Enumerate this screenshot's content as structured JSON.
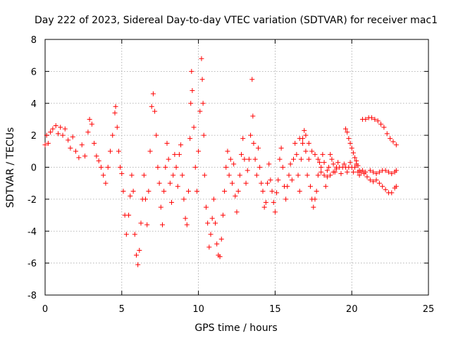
{
  "chart_data": {
    "type": "scatter",
    "title": "Day 222 of 2023, Sidereal Day-to-day VTEC variation (SDTVAR) for receiver mac1",
    "xlabel": "GPS time / hours",
    "ylabel": "SDTVAR / TECUs",
    "xlim": [
      0,
      25
    ],
    "ylim": [
      -8,
      8
    ],
    "xticks": [
      0,
      5,
      10,
      15,
      20,
      25
    ],
    "yticks": [
      -8,
      -6,
      -4,
      -2,
      0,
      2,
      4,
      6,
      8
    ],
    "xtick_labels": [
      "0",
      "5",
      "10",
      "15",
      "20",
      "25"
    ],
    "ytick_labels": [
      "-8",
      "-6",
      "-4",
      "-2",
      "0",
      "2",
      "4",
      "6",
      "8"
    ],
    "grid": true,
    "marker": "plus",
    "color": "#ff0000",
    "series": [
      {
        "name": "SDTVAR",
        "points": [
          [
            0.0,
            1.4
          ],
          [
            0.1,
            2.0
          ],
          [
            0.2,
            1.5
          ],
          [
            0.35,
            2.2
          ],
          [
            0.5,
            2.4
          ],
          [
            0.7,
            2.6
          ],
          [
            0.85,
            2.1
          ],
          [
            1.0,
            2.5
          ],
          [
            1.15,
            2.0
          ],
          [
            1.3,
            2.4
          ],
          [
            1.5,
            1.7
          ],
          [
            1.65,
            1.2
          ],
          [
            1.8,
            1.9
          ],
          [
            2.0,
            1.0
          ],
          [
            2.2,
            0.6
          ],
          [
            2.4,
            1.4
          ],
          [
            2.6,
            0.7
          ],
          [
            2.8,
            2.2
          ],
          [
            2.9,
            3.0
          ],
          [
            3.05,
            2.7
          ],
          [
            3.2,
            1.5
          ],
          [
            3.35,
            0.7
          ],
          [
            3.5,
            0.4
          ],
          [
            3.65,
            0.0
          ],
          [
            3.8,
            -0.5
          ],
          [
            3.95,
            -1.0
          ],
          [
            4.1,
            0.0
          ],
          [
            4.25,
            1.0
          ],
          [
            4.4,
            2.0
          ],
          [
            4.55,
            3.4
          ],
          [
            4.6,
            3.8
          ],
          [
            4.7,
            2.5
          ],
          [
            4.8,
            1.0
          ],
          [
            4.9,
            0.0
          ],
          [
            5.0,
            -0.4
          ],
          [
            5.1,
            -1.5
          ],
          [
            5.2,
            -3.0
          ],
          [
            5.3,
            -4.2
          ],
          [
            5.45,
            -3.0
          ],
          [
            5.55,
            -1.8
          ],
          [
            5.65,
            -0.5
          ],
          [
            5.75,
            -1.5
          ],
          [
            5.85,
            -4.2
          ],
          [
            5.95,
            -5.5
          ],
          [
            6.05,
            -6.1
          ],
          [
            6.15,
            -5.2
          ],
          [
            6.25,
            -3.5
          ],
          [
            6.35,
            -2.0
          ],
          [
            6.45,
            -0.5
          ],
          [
            6.55,
            -2.0
          ],
          [
            6.65,
            -3.6
          ],
          [
            6.75,
            -1.5
          ],
          [
            6.85,
            1.0
          ],
          [
            6.95,
            3.8
          ],
          [
            7.05,
            4.6
          ],
          [
            7.15,
            3.5
          ],
          [
            7.25,
            2.0
          ],
          [
            7.35,
            0.0
          ],
          [
            7.45,
            -1.0
          ],
          [
            7.55,
            -2.5
          ],
          [
            7.65,
            -3.6
          ],
          [
            7.75,
            -1.5
          ],
          [
            7.85,
            0.0
          ],
          [
            7.95,
            1.5
          ],
          [
            8.05,
            0.5
          ],
          [
            8.15,
            -1.0
          ],
          [
            8.25,
            -2.2
          ],
          [
            8.35,
            -0.5
          ],
          [
            8.45,
            0.8
          ],
          [
            8.55,
            0.0
          ],
          [
            8.65,
            -1.2
          ],
          [
            8.75,
            0.8
          ],
          [
            8.85,
            1.4
          ],
          [
            8.95,
            -0.5
          ],
          [
            9.05,
            -2.0
          ],
          [
            9.15,
            -3.2
          ],
          [
            9.25,
            -3.6
          ],
          [
            9.35,
            -1.5
          ],
          [
            9.45,
            1.8
          ],
          [
            9.5,
            4.0
          ],
          [
            9.55,
            6.0
          ],
          [
            9.6,
            4.8
          ],
          [
            9.7,
            2.5
          ],
          [
            9.8,
            0.0
          ],
          [
            9.9,
            -1.5
          ],
          [
            10.0,
            1.0
          ],
          [
            10.1,
            3.5
          ],
          [
            10.2,
            6.8
          ],
          [
            10.25,
            5.5
          ],
          [
            10.3,
            4.0
          ],
          [
            10.35,
            2.0
          ],
          [
            10.4,
            -0.5
          ],
          [
            10.5,
            -2.5
          ],
          [
            10.6,
            -3.5
          ],
          [
            10.7,
            -5.0
          ],
          [
            10.8,
            -4.2
          ],
          [
            10.9,
            -3.2
          ],
          [
            11.0,
            -2.0
          ],
          [
            11.1,
            -3.5
          ],
          [
            11.2,
            -4.8
          ],
          [
            11.3,
            -5.5
          ],
          [
            11.4,
            -5.6
          ],
          [
            11.5,
            -4.5
          ],
          [
            11.6,
            -3.0
          ],
          [
            11.7,
            -1.5
          ],
          [
            11.8,
            0.0
          ],
          [
            11.9,
            1.0
          ],
          [
            12.0,
            -0.5
          ],
          [
            12.1,
            0.5
          ],
          [
            12.2,
            -1.0
          ],
          [
            12.3,
            0.2
          ],
          [
            12.4,
            -1.8
          ],
          [
            12.5,
            -2.8
          ],
          [
            12.6,
            -1.5
          ],
          [
            12.7,
            -0.5
          ],
          [
            12.8,
            0.8
          ],
          [
            12.9,
            1.8
          ],
          [
            13.0,
            0.5
          ],
          [
            13.1,
            -1.0
          ],
          [
            13.2,
            -0.2
          ],
          [
            13.3,
            0.5
          ],
          [
            13.4,
            2.0
          ],
          [
            13.5,
            5.5
          ],
          [
            13.55,
            3.2
          ],
          [
            13.6,
            1.5
          ],
          [
            13.7,
            0.5
          ],
          [
            13.8,
            -0.5
          ],
          [
            13.9,
            1.2
          ],
          [
            14.0,
            0.0
          ],
          [
            14.1,
            -1.0
          ],
          [
            14.2,
            -1.5
          ],
          [
            14.3,
            -2.5
          ],
          [
            14.4,
            -2.2
          ],
          [
            14.5,
            -1.0
          ],
          [
            14.6,
            0.2
          ],
          [
            14.7,
            -0.8
          ],
          [
            14.8,
            -1.5
          ],
          [
            14.9,
            -2.2
          ],
          [
            15.0,
            -2.8
          ],
          [
            15.1,
            -1.6
          ],
          [
            15.2,
            -0.8
          ],
          [
            15.3,
            0.5
          ],
          [
            15.4,
            1.2
          ],
          [
            15.5,
            0.0
          ],
          [
            15.6,
            -1.2
          ],
          [
            15.7,
            -2.0
          ],
          [
            15.8,
            -1.2
          ],
          [
            15.9,
            -0.5
          ],
          [
            16.0,
            0.2
          ],
          [
            16.1,
            -0.8
          ],
          [
            16.2,
            0.5
          ],
          [
            16.3,
            1.5
          ],
          [
            16.4,
            0.8
          ],
          [
            16.5,
            -0.5
          ],
          [
            16.6,
            -1.5
          ],
          [
            16.7,
            0.5
          ],
          [
            16.8,
            1.8
          ],
          [
            16.9,
            2.3
          ],
          [
            17.0,
            1.0
          ],
          [
            17.1,
            -0.5
          ],
          [
            17.2,
            0.5
          ],
          [
            17.3,
            -1.2
          ],
          [
            17.4,
            -2.0
          ],
          [
            17.5,
            -2.5
          ],
          [
            17.6,
            -2.0
          ],
          [
            17.7,
            -1.5
          ],
          [
            17.8,
            -0.5
          ],
          [
            17.9,
            0.3
          ],
          [
            18.0,
            -0.3
          ],
          [
            18.1,
            0.8
          ],
          [
            18.2,
            -0.5
          ],
          [
            18.3,
            -1.2
          ],
          [
            18.4,
            -0.6
          ],
          [
            18.5,
            0.0
          ],
          [
            18.6,
            0.8
          ],
          [
            18.7,
            0.5
          ],
          [
            18.8,
            0.2
          ],
          [
            18.9,
            -0.3
          ],
          [
            19.0,
            0.0
          ],
          [
            19.1,
            0.3
          ],
          [
            19.2,
            0.0
          ],
          [
            19.3,
            -0.4
          ],
          [
            19.4,
            0.0
          ],
          [
            19.5,
            0.2
          ],
          [
            19.6,
            0.0
          ],
          [
            19.7,
            -0.3
          ],
          [
            19.8,
            0.0
          ],
          [
            19.9,
            0.3
          ],
          [
            20.0,
            0.0
          ],
          [
            20.1,
            -0.3
          ],
          [
            20.2,
            0.0
          ],
          [
            20.3,
            0.2
          ],
          [
            20.4,
            -0.3
          ],
          [
            20.5,
            -0.5
          ],
          [
            20.6,
            -0.3
          ],
          [
            20.7,
            -0.2
          ],
          [
            20.8,
            -0.4
          ],
          [
            20.9,
            -0.3
          ],
          [
            21.0,
            -0.6
          ],
          [
            21.2,
            -0.8
          ],
          [
            21.4,
            -0.9
          ],
          [
            21.6,
            -0.8
          ],
          [
            21.8,
            -1.0
          ],
          [
            22.0,
            -1.2
          ],
          [
            22.2,
            -1.4
          ],
          [
            22.4,
            -1.6
          ],
          [
            22.6,
            -1.6
          ],
          [
            22.8,
            -1.3
          ],
          [
            22.9,
            -1.2
          ],
          [
            19.6,
            2.4
          ],
          [
            19.7,
            2.2
          ],
          [
            19.8,
            1.8
          ],
          [
            19.9,
            1.5
          ],
          [
            20.0,
            1.2
          ],
          [
            20.1,
            0.9
          ],
          [
            20.2,
            0.6
          ],
          [
            20.3,
            0.4
          ],
          [
            20.4,
            0.1
          ],
          [
            20.5,
            -0.2
          ],
          [
            20.7,
            3.0
          ],
          [
            20.9,
            3.0
          ],
          [
            21.1,
            3.1
          ],
          [
            21.3,
            3.1
          ],
          [
            21.5,
            3.0
          ],
          [
            21.7,
            2.9
          ],
          [
            21.9,
            2.7
          ],
          [
            22.1,
            2.5
          ],
          [
            22.3,
            2.1
          ],
          [
            22.5,
            1.8
          ],
          [
            22.7,
            1.6
          ],
          [
            22.9,
            1.4
          ],
          [
            21.2,
            -0.2
          ],
          [
            21.4,
            -0.3
          ],
          [
            21.6,
            -0.4
          ],
          [
            21.8,
            -0.3
          ],
          [
            22.0,
            -0.2
          ],
          [
            22.2,
            -0.2
          ],
          [
            22.4,
            -0.3
          ],
          [
            22.6,
            -0.4
          ],
          [
            22.8,
            -0.3
          ],
          [
            22.9,
            -0.2
          ],
          [
            16.6,
            1.8
          ],
          [
            16.8,
            1.5
          ],
          [
            17.0,
            2.0
          ],
          [
            17.2,
            1.5
          ],
          [
            17.4,
            1.0
          ],
          [
            17.6,
            0.8
          ],
          [
            17.8,
            0.5
          ],
          [
            18.0,
            0.0
          ],
          [
            18.2,
            0.3
          ],
          [
            18.4,
            -0.2
          ],
          [
            18.6,
            -0.5
          ],
          [
            18.8,
            -0.3
          ],
          [
            19.0,
            -0.1
          ]
        ]
      }
    ]
  }
}
